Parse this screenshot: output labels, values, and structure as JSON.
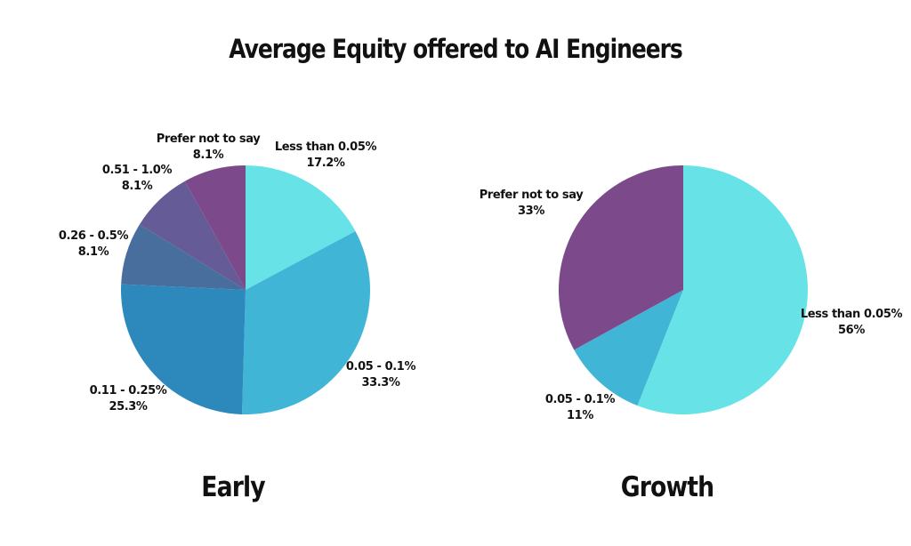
{
  "title": "Average Equity offered to AI Engineers",
  "chart_data": [
    {
      "type": "pie",
      "title": "Early",
      "slices": [
        {
          "label": "Less than 0.05%",
          "value": 17.2,
          "display": "17.2%",
          "color": "#67E3E8"
        },
        {
          "label": "0.05 - 0.1%",
          "value": 33.3,
          "display": "33.3%",
          "color": "#41B5D6"
        },
        {
          "label": "0.11 - 0.25%",
          "value": 25.3,
          "display": "25.3%",
          "color": "#2D89BC"
        },
        {
          "label": "0.26 - 0.5%",
          "value": 8.1,
          "display": "8.1%",
          "color": "#476E9D"
        },
        {
          "label": "0.51 - 1.0%",
          "value": 8.1,
          "display": "8.1%",
          "color": "#655B97"
        },
        {
          "label": "Prefer not to say",
          "value": 8.1,
          "display": "8.1%",
          "color": "#7C4A8B"
        }
      ]
    },
    {
      "type": "pie",
      "title": "Growth",
      "slices": [
        {
          "label": "Less than 0.05%",
          "value": 56,
          "display": "56%",
          "color": "#67E3E8"
        },
        {
          "label": "0.05 - 0.1%",
          "value": 11,
          "display": "11%",
          "color": "#41B5D6"
        },
        {
          "label": "Prefer not to say",
          "value": 33,
          "display": "33%",
          "color": "#7C4A8B"
        }
      ]
    }
  ]
}
